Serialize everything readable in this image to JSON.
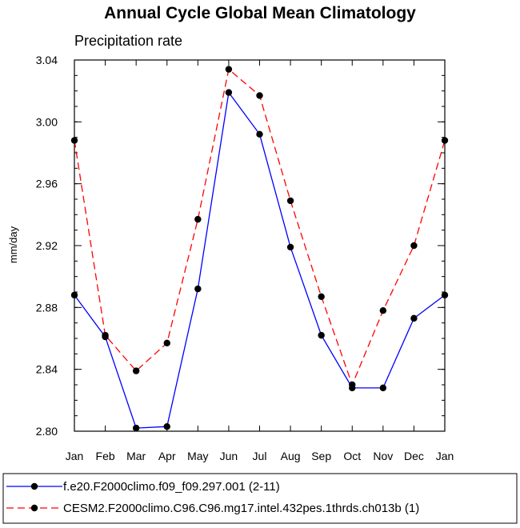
{
  "chart_data": {
    "type": "line",
    "title": "Annual Cycle Global Mean Climatology",
    "subtitle": "Precipitation rate",
    "ylabel": "mm/day",
    "xlabel": "",
    "categories": [
      "Jan",
      "Feb",
      "Mar",
      "Apr",
      "May",
      "Jun",
      "Jul",
      "Aug",
      "Sep",
      "Oct",
      "Nov",
      "Dec",
      "Jan"
    ],
    "ylim": [
      2.8,
      3.04
    ],
    "yticks": [
      "2.80",
      "2.84",
      "2.88",
      "2.92",
      "2.96",
      "3.00",
      "3.04"
    ],
    "series": [
      {
        "name": "f.e20.F2000climo.f09_f09.297.001 (2-11)",
        "color": "#0000ff",
        "dash": "solid",
        "values": [
          2.888,
          2.861,
          2.802,
          2.803,
          2.892,
          3.019,
          2.992,
          2.919,
          2.862,
          2.828,
          2.828,
          2.873,
          2.888
        ]
      },
      {
        "name": "CESM2.F2000climo.C96.C96.mg17.intel.432pes.1thrds.ch013b (1)",
        "color": "#ff0000",
        "dash": "dashed",
        "values": [
          2.988,
          2.862,
          2.839,
          2.857,
          2.937,
          3.034,
          3.017,
          2.949,
          2.887,
          2.83,
          2.878,
          2.92,
          2.988
        ]
      }
    ]
  }
}
